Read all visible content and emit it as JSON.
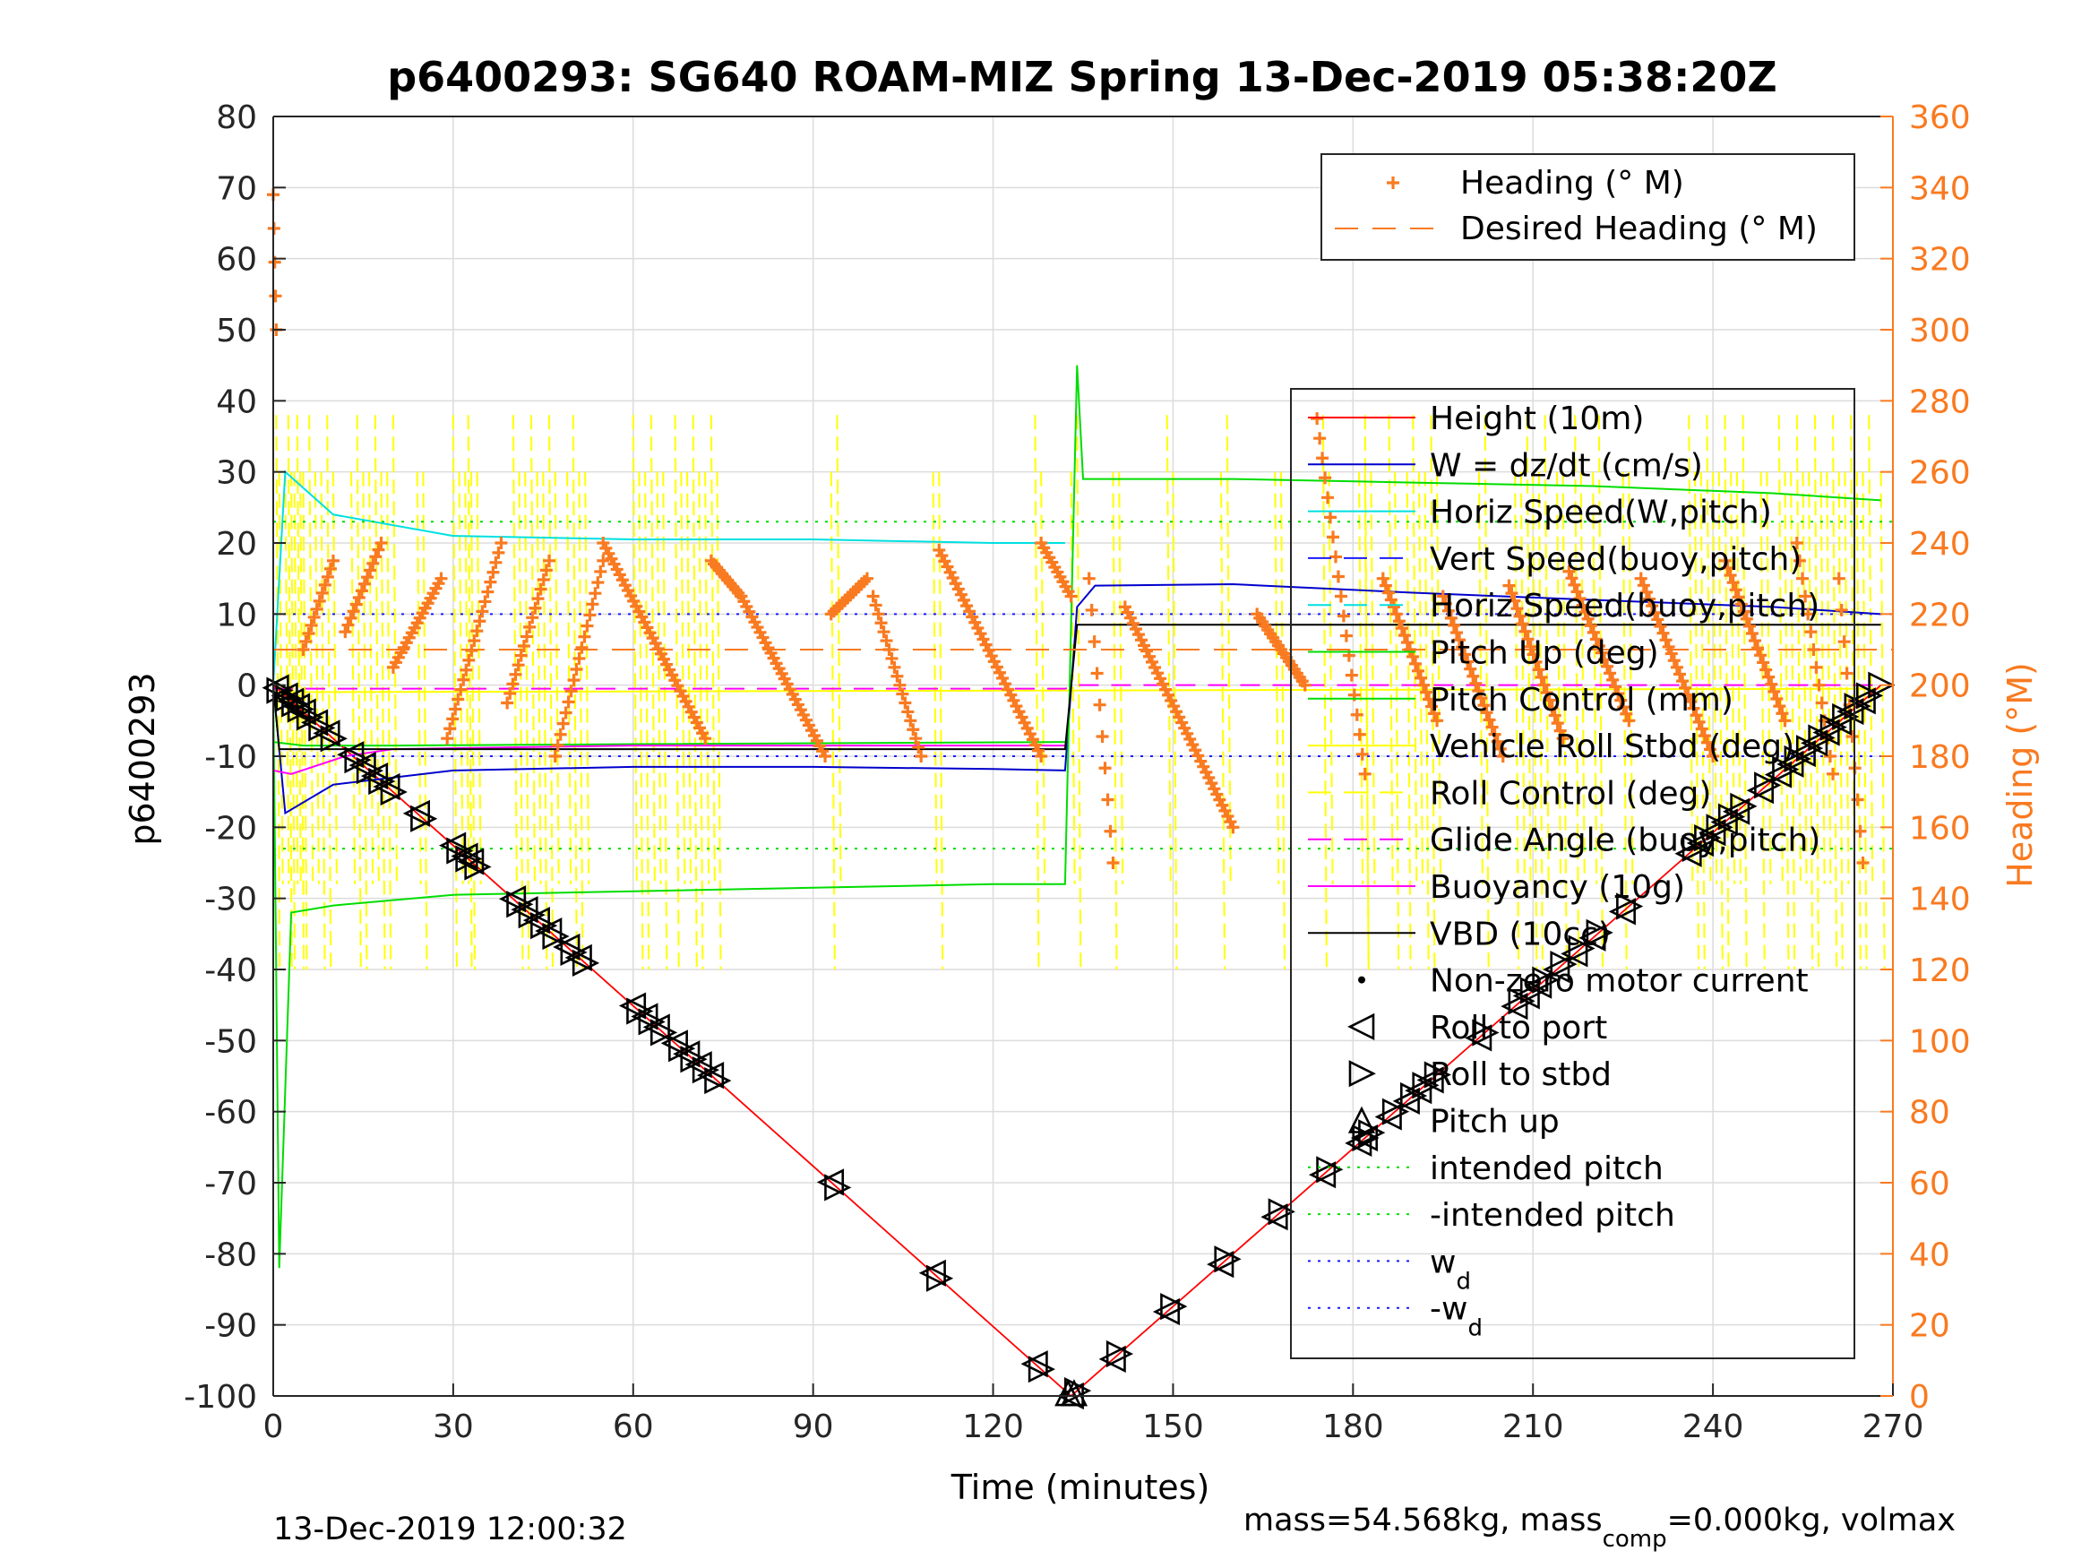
{
  "chart_data": {
    "type": "line",
    "title": "p6400293: SG640 ROAM-MIZ Spring 13-Dec-2019 05:38:20Z",
    "xlabel": "Time (minutes)",
    "ylabel_left": "p6400293",
    "ylabel_right": "Heading (°M)",
    "xlim": [
      0,
      270
    ],
    "ylim_left": [
      -100,
      80
    ],
    "ylim_right": [
      0,
      360
    ],
    "x_ticks": [
      0,
      30,
      60,
      90,
      120,
      150,
      180,
      210,
      240,
      270
    ],
    "y_ticks_left": [
      80,
      70,
      60,
      50,
      40,
      30,
      20,
      10,
      0,
      -10,
      -20,
      -30,
      -40,
      -50,
      -60,
      -70,
      -80,
      -90,
      -100
    ],
    "y_ticks_right": [
      360,
      340,
      320,
      300,
      280,
      260,
      240,
      220,
      200,
      180,
      160,
      140,
      120,
      100,
      80,
      60,
      40,
      20,
      0
    ],
    "grid": true,
    "colors": {
      "heading": "#f97a20",
      "height": "#ff0000",
      "w": "#0000cc",
      "horiz_speed": "#00e0e0",
      "vert_speed": "#1a1aff",
      "pitch": "#00dd00",
      "roll": "#ffff00",
      "glide": "#ff00ff",
      "vbd": "#000000",
      "right_axis": "#f97a20"
    },
    "legend_top": {
      "placement": "top-right",
      "entries": [
        "Heading (° M)",
        "Desired Heading (° M)"
      ]
    },
    "legend_main": {
      "placement": "right",
      "entries": [
        {
          "label": "Height (10m)"
        },
        {
          "label": "W = dz/dt (cm/s)"
        },
        {
          "label": "Horiz Speed(W,pitch)"
        },
        {
          "label": "Vert Speed(buoy,pitch)"
        },
        {
          "label": "Horiz Speed(buoy,pitch)"
        },
        {
          "label": "Pitch Up (deg)"
        },
        {
          "label": "Pitch Control (mm)"
        },
        {
          "label": "Vehicle Roll Stbd (deg)"
        },
        {
          "label": "Roll Control (deg)"
        },
        {
          "label": "Glide Angle (buoy,pitch)"
        },
        {
          "label": "Buoyancy (10g)"
        },
        {
          "label": "VBD (10cc)"
        },
        {
          "label": "Non-zero motor current"
        },
        {
          "label": "Roll to port"
        },
        {
          "label": "Roll to stbd"
        },
        {
          "label": "Pitch up"
        },
        {
          "label": "intended pitch"
        },
        {
          "label": "-intended pitch"
        },
        {
          "label": "w",
          "sub": "d"
        },
        {
          "label": "-w",
          "sub": "d"
        }
      ]
    },
    "series": [
      {
        "name": "Height (10m)",
        "x": [
          0,
          133,
          268
        ],
        "y": [
          0,
          -100,
          0
        ]
      },
      {
        "name": "W = dz/dt (cm/s)",
        "x": [
          0,
          2,
          10,
          30,
          60,
          90,
          120,
          132,
          134,
          137,
          160,
          190,
          220,
          250,
          268
        ],
        "y": [
          0,
          -18,
          -14,
          -12,
          -11.5,
          -11.5,
          -11.8,
          -12,
          11,
          14,
          14.2,
          13,
          12,
          11,
          10
        ]
      },
      {
        "name": "Horiz Speed(W,pitch)",
        "x": [
          0,
          2,
          10,
          30,
          60,
          90,
          120,
          132
        ],
        "y": [
          0,
          30,
          24,
          21,
          20.5,
          20.5,
          20,
          20
        ]
      },
      {
        "name": "Pitch Up (deg)",
        "x": [
          0,
          1,
          3,
          10,
          30,
          60,
          90,
          120,
          132,
          134,
          135,
          160,
          190,
          220,
          250,
          268
        ],
        "y": [
          0,
          -82,
          -32,
          -31,
          -29.5,
          -29,
          -28.5,
          -28,
          -28,
          45,
          29,
          29,
          28.5,
          28,
          27,
          26
        ]
      },
      {
        "name": "Pitch Control (mm)",
        "x": [
          0,
          5,
          20,
          60,
          132
        ],
        "y": [
          -8,
          -8.5,
          -8.5,
          -8.3,
          -8
        ]
      },
      {
        "name": "Glide Angle (buoy,pitch)",
        "x": [
          0,
          132,
          134,
          268
        ],
        "y": [
          -0.5,
          -0.5,
          0,
          0
        ]
      },
      {
        "name": "Buoyancy (10g)",
        "x": [
          0,
          3,
          12,
          20,
          60,
          132
        ],
        "y": [
          -12,
          -12.5,
          -10,
          -9,
          -8.5,
          -8.5
        ]
      },
      {
        "name": "VBD (10cc)",
        "x": [
          0,
          1,
          30,
          132,
          134,
          268
        ],
        "y": [
          0,
          -9,
          -9,
          -9,
          8.5,
          8.5
        ]
      },
      {
        "name": "intended pitch",
        "y_const": 23
      },
      {
        "name": "-intended pitch",
        "y_const": -23
      },
      {
        "name": "w_d",
        "y_const": 10
      },
      {
        "name": "-w_d",
        "y_const": -10
      }
    ],
    "heading_segments": [
      {
        "x": [
          0,
          0.5
        ],
        "y": [
          338,
          300
        ]
      },
      {
        "x": [
          5,
          10
        ],
        "y": [
          210,
          235
        ]
      },
      {
        "x": [
          12,
          18
        ],
        "y": [
          215,
          240
        ]
      },
      {
        "x": [
          20,
          28
        ],
        "y": [
          205,
          230
        ]
      },
      {
        "x": [
          29,
          38
        ],
        "y": [
          185,
          240
        ]
      },
      {
        "x": [
          39,
          46
        ],
        "y": [
          195,
          235
        ]
      },
      {
        "x": [
          47,
          55
        ],
        "y": [
          180,
          235
        ]
      },
      {
        "x": [
          55,
          72
        ],
        "y": [
          240,
          185
        ]
      },
      {
        "x": [
          73,
          78
        ],
        "y": [
          235,
          225
        ]
      },
      {
        "x": [
          78,
          92
        ],
        "y": [
          225,
          180
        ]
      },
      {
        "x": [
          93,
          99
        ],
        "y": [
          220,
          230
        ]
      },
      {
        "x": [
          100,
          108
        ],
        "y": [
          225,
          180
        ]
      },
      {
        "x": [
          111,
          128
        ],
        "y": [
          238,
          180
        ]
      },
      {
        "x": [
          128,
          133
        ],
        "y": [
          240,
          225
        ]
      },
      {
        "x": [
          136,
          140
        ],
        "y": [
          230,
          150
        ]
      },
      {
        "x": [
          142,
          160
        ],
        "y": [
          222,
          160
        ]
      },
      {
        "x": [
          164,
          172
        ],
        "y": [
          220,
          200
        ]
      },
      {
        "x": [
          174,
          182
        ],
        "y": [
          275,
          175
        ]
      },
      {
        "x": [
          185,
          194
        ],
        "y": [
          230,
          190
        ]
      },
      {
        "x": [
          195,
          205
        ],
        "y": [
          225,
          180
        ]
      },
      {
        "x": [
          206,
          215
        ],
        "y": [
          228,
          185
        ]
      },
      {
        "x": [
          216,
          226
        ],
        "y": [
          232,
          190
        ]
      },
      {
        "x": [
          228,
          240
        ],
        "y": [
          230,
          180
        ]
      },
      {
        "x": [
          242,
          252
        ],
        "y": [
          235,
          190
        ]
      },
      {
        "x": [
          254,
          260
        ],
        "y": [
          240,
          175
        ]
      },
      {
        "x": [
          261,
          265
        ],
        "y": [
          230,
          150
        ]
      }
    ],
    "desired_heading": 210,
    "roll_to_port_markers": {
      "x": [
        0.5,
        2,
        3,
        4,
        5,
        7,
        9,
        13,
        15,
        17,
        19,
        24,
        30,
        32,
        33,
        40,
        42,
        44,
        46,
        49,
        51,
        60,
        62,
        64,
        67,
        69,
        71,
        73,
        93,
        110,
        127,
        133,
        140,
        149,
        158,
        167,
        175,
        181,
        182,
        186,
        189,
        191,
        193,
        201,
        207,
        209,
        211,
        214,
        217,
        220,
        225,
        236,
        238,
        240,
        242,
        244,
        248,
        251,
        253,
        255,
        257,
        259,
        261,
        263,
        265
      ]
    },
    "roll_to_stbd_markers": {
      "x": [
        1,
        2.5,
        3.5,
        4.5,
        6,
        8,
        10,
        14,
        16,
        18,
        20,
        25,
        31,
        32.5,
        34,
        41,
        43,
        45,
        47,
        50,
        52,
        61,
        63,
        65,
        68,
        70,
        72,
        74,
        94,
        111,
        128,
        134,
        141,
        150,
        159,
        168,
        176,
        182,
        183,
        187,
        190,
        192,
        194,
        202,
        208,
        210,
        212,
        215,
        218,
        221,
        226,
        237,
        239,
        241,
        243,
        245,
        249,
        252,
        254,
        256,
        258,
        260,
        262,
        264,
        266,
        268
      ]
    },
    "pitch_up_markers": {
      "x": [
        132.5,
        133.5
      ]
    },
    "footer_left": "13-Dec-2019 12:00:32",
    "footer_right_pre": "mass=54.568kg, mass",
    "footer_right_sub": "comp",
    "footer_right_post": "=0.000kg, volmax"
  }
}
